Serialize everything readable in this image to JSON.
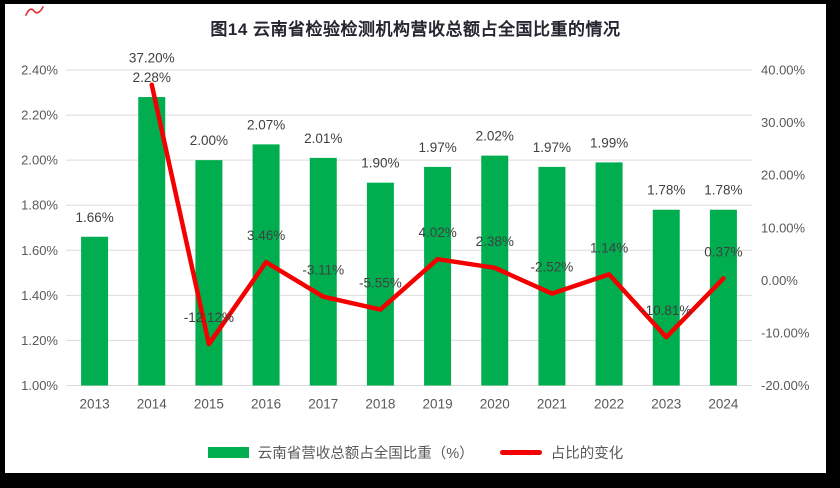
{
  "chart_data": {
    "type": "bar",
    "combo": "bar+line, dual axis",
    "title": "图14  云南省检验检测机构营收总额占全国比重的情况",
    "categories": [
      "2013",
      "2014",
      "2015",
      "2016",
      "2017",
      "2018",
      "2019",
      "2020",
      "2021",
      "2022",
      "2023",
      "2024"
    ],
    "series": [
      {
        "name": "云南省营收总额占全国比重（%）",
        "type": "bar",
        "axis": "left",
        "color": "#00AE50",
        "values": [
          1.66,
          2.28,
          2.0,
          2.07,
          2.01,
          1.9,
          1.97,
          2.02,
          1.97,
          1.99,
          1.78,
          1.78
        ],
        "labels": [
          "1.66%",
          "2.28%",
          "2.00%",
          "2.07%",
          "2.01%",
          "1.90%",
          "1.97%",
          "2.02%",
          "1.97%",
          "1.99%",
          "1.78%",
          "1.78%"
        ]
      },
      {
        "name": "占比的变化",
        "type": "line",
        "axis": "right",
        "color": "#F40000",
        "values": [
          null,
          37.2,
          -12.12,
          3.46,
          -3.11,
          -5.55,
          4.02,
          2.38,
          -2.52,
          1.14,
          -10.81,
          0.37
        ],
        "labels": [
          null,
          "37.20%",
          "-12.12%",
          "3.46%",
          "-3.11%",
          "-5.55%",
          "4.02%",
          "2.38%",
          "-2.52%",
          "1.14%",
          "-10.81%",
          "0.37%"
        ]
      }
    ],
    "left_axis": {
      "min": 1.0,
      "max": 2.4,
      "ticks": [
        "2.40%",
        "2.20%",
        "2.00%",
        "1.80%",
        "1.60%",
        "1.40%",
        "1.20%",
        "1.00%"
      ]
    },
    "right_axis": {
      "min": -20.0,
      "max": 40.0,
      "ticks": [
        "40.00%",
        "30.00%",
        "20.00%",
        "10.00%",
        "0.00%",
        "-10.00%",
        "-20.00%"
      ]
    },
    "grid": true,
    "legend_position": "bottom",
    "legend": [
      {
        "label": "云南省营收总额占全国比重（%）",
        "swatch": "bar"
      },
      {
        "label": "占比的变化",
        "swatch": "line"
      }
    ]
  },
  "colors": {
    "bar": "#00AE50",
    "line": "#F40000",
    "grid": "#DCDCDC",
    "tick_text": "#595959",
    "data_label_text": "#404040",
    "title_text": "#262631",
    "frame_border": "#000000"
  }
}
